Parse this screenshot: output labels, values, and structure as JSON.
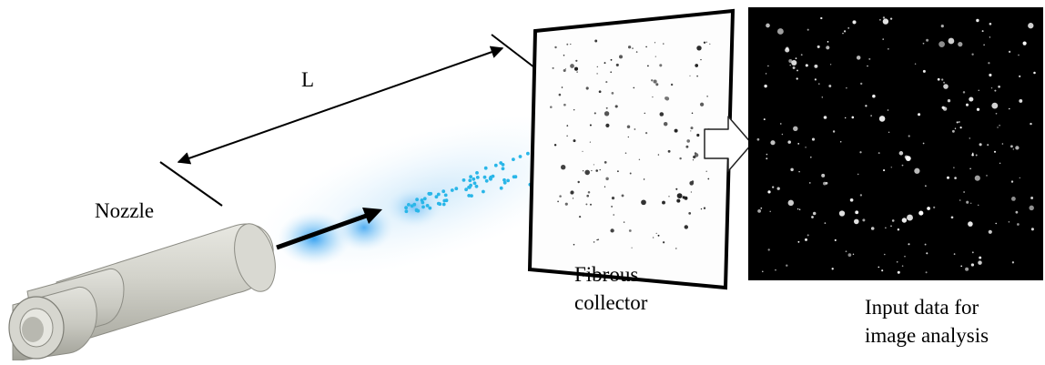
{
  "labels": {
    "distance": "L",
    "nozzle": "Nozzle",
    "collector_line1": "Fibrous",
    "collector_line2": "collector",
    "input_line1": "Input data for",
    "input_line2": "image analysis"
  },
  "colors": {
    "spray_dots": "#29b6e8",
    "spray_glow": "#5ab4f0",
    "nozzle_body": "#c8c8c0",
    "frame": "#000000",
    "analysis_background": "#000000",
    "arrow_fill": "#ffffff"
  },
  "icons": [
    "nozzle-icon",
    "flow-arrow-icon",
    "distance-arrow-icon",
    "transfer-arrow-icon"
  ]
}
